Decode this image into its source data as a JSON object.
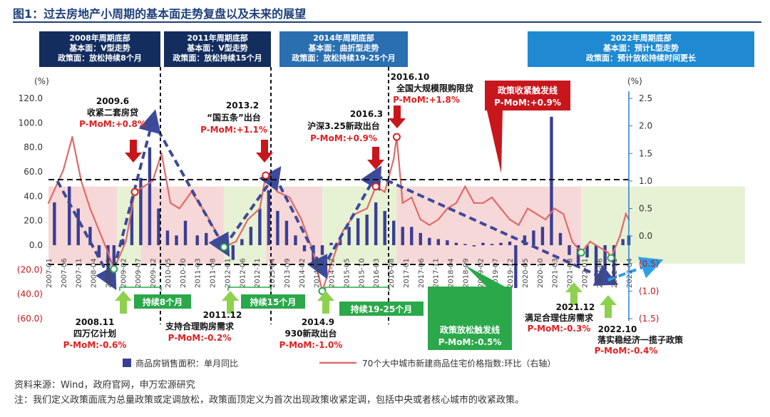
{
  "title": "图1：过去房地产小周期的基本面走势复盘以及未来的展望",
  "headers": [
    {
      "lines": [
        "2008年周期底部",
        "基本面：V型走势",
        "政策面：放松持续8个月"
      ]
    },
    {
      "lines": [
        "2011年周期底部",
        "基本面：V型走势",
        "政策面：放松持续15个月"
      ]
    },
    {
      "lines": [
        "2014年周期底部",
        "基本面：曲折型走势",
        "政策面：放松持续19-25个月"
      ]
    },
    {
      "lines": [
        "2022年周期底部",
        "基本面：预计L型走势",
        "政策面：预计放松持续时间更长"
      ]
    }
  ],
  "axes": {
    "left_unit": "(%)",
    "right_unit": "(%)",
    "left_ticks": [
      "120.0",
      "100.0",
      "80.0",
      "60.0",
      "40.0",
      "20.0",
      "0.0",
      "(20.0)",
      "(40.0)",
      "(60.0)"
    ],
    "right_ticks": [
      "2.5",
      "2.0",
      "1.5",
      "1.0",
      "0.5",
      "0.0",
      "(0.5)",
      "(1.0)",
      "(1.5)"
    ]
  },
  "annotations": {
    "a2009": {
      "date": "2009.6",
      "event": "收紧二套房贷",
      "mom": "P-MoM:+0.8%"
    },
    "a2013": {
      "date": "2013.2",
      "event": "“国五条”出台",
      "mom": "P-MoM:+1.1%"
    },
    "a2016_3": {
      "date": "2016.3",
      "event": "沪深3.25新政出台",
      "mom": "P-MoM:+0.9%"
    },
    "a2016_10": {
      "date": "2016.10",
      "event": "全国大规模限购限贷",
      "mom": "P-MoM:+1.8%"
    },
    "a2008": {
      "date": "2008.11",
      "event": "四万亿计划",
      "mom": "P-MoM:-0.6%"
    },
    "a2011": {
      "date": "2011.12",
      "event": "支持合理购房需求",
      "mom": "P-MoM:-0.2%"
    },
    "a2014": {
      "date": "2014.9",
      "event": "930新政出台",
      "mom": "P-MoM:-1.0%"
    },
    "a2021": {
      "date": "2021.12",
      "event": "满足合理住房需求",
      "mom": "P-MoM:-0.3%"
    },
    "a2022": {
      "date": "2022.10",
      "event": "落实稳经济一揽子政策",
      "mom": "P-MoM:-0.4%"
    },
    "tighten": {
      "line1": "政策收紧触发线",
      "line2": "P-MoM:+0.9%"
    },
    "loosen": {
      "line1": "政策放松触发线",
      "line2": "P-MoM:-0.5%"
    },
    "dur8": "持续8个月",
    "dur15": "持续15个月",
    "dur19": "持续19-25个月"
  },
  "legend": {
    "bar": "商品房销售面积：单月同比",
    "line": "70个大中城市新建商品住宅价格指数:环比（右轴）"
  },
  "footer": {
    "source": "资料来源：Wind，政府官网，申万宏源研究",
    "note": "注：我们定义政策面底为总量政策或定调放松，政策面顶定义为首次出现政策收紧定调，包括中央或者核心城市的收紧政策。"
  },
  "chart_data": {
    "type": "bar",
    "x_range": [
      "2007-01",
      "2023-04"
    ],
    "x_tick_labels": [
      "2007-01",
      "2007-06",
      "2007-11",
      "2008-04",
      "2008-09",
      "2009-02",
      "2009-07",
      "2009-12",
      "2010-05",
      "2010-10",
      "2011-03",
      "2011-08",
      "2012-01",
      "2012-06",
      "2012-11",
      "2013-04",
      "2013-09",
      "2014-02",
      "2014-07",
      "2014-12",
      "2015-05",
      "2015-10",
      "2016-03",
      "2016-08",
      "2017-01",
      "2017-06",
      "2017-11",
      "2018-04",
      "2018-09",
      "2019-02",
      "2019-07",
      "2019-12",
      "2020-05",
      "2020-10",
      "2021-03",
      "2021-08",
      "2022-01",
      "2022-06",
      "2022-11",
      "2023-04"
    ],
    "ylim_left": [
      -60,
      120
    ],
    "ylim_right": [
      -1.5,
      2.5
    ],
    "tighten_threshold": 0.9,
    "loosen_threshold": -0.5,
    "grid": false,
    "legend_position": "bottom",
    "series": [
      {
        "name": "商品房销售面积：单月同比",
        "kind": "bar",
        "axis": "left",
        "color": "#3a3f94",
        "points": [
          [
            "2007-03",
            35
          ],
          [
            "2007-08",
            48
          ],
          [
            "2007-11",
            30
          ],
          [
            "2008-03",
            15
          ],
          [
            "2008-06",
            -10
          ],
          [
            "2008-09",
            -25
          ],
          [
            "2008-11",
            -20
          ],
          [
            "2009-02",
            5
          ],
          [
            "2009-05",
            35
          ],
          [
            "2009-08",
            55
          ],
          [
            "2009-11",
            80
          ],
          [
            "2010-02",
            30
          ],
          [
            "2010-05",
            12
          ],
          [
            "2010-08",
            8
          ],
          [
            "2010-11",
            20
          ],
          [
            "2011-03",
            8
          ],
          [
            "2011-06",
            10
          ],
          [
            "2011-09",
            5
          ],
          [
            "2011-12",
            -5
          ],
          [
            "2012-03",
            -12
          ],
          [
            "2012-06",
            5
          ],
          [
            "2012-09",
            15
          ],
          [
            "2012-12",
            30
          ],
          [
            "2013-03",
            45
          ],
          [
            "2013-06",
            28
          ],
          [
            "2013-09",
            20
          ],
          [
            "2013-12",
            8
          ],
          [
            "2014-03",
            -5
          ],
          [
            "2014-06",
            -15
          ],
          [
            "2014-09",
            -8
          ],
          [
            "2014-12",
            2
          ],
          [
            "2015-03",
            5
          ],
          [
            "2015-06",
            15
          ],
          [
            "2015-09",
            22
          ],
          [
            "2015-12",
            25
          ],
          [
            "2016-03",
            35
          ],
          [
            "2016-06",
            28
          ],
          [
            "2016-09",
            20
          ],
          [
            "2016-12",
            15
          ],
          [
            "2017-03",
            15
          ],
          [
            "2017-06",
            10
          ],
          [
            "2017-09",
            6
          ],
          [
            "2017-12",
            5
          ],
          [
            "2018-03",
            4
          ],
          [
            "2018-06",
            2
          ],
          [
            "2018-09",
            1
          ],
          [
            "2018-12",
            -1
          ],
          [
            "2019-03",
            2
          ],
          [
            "2019-06",
            1
          ],
          [
            "2019-09",
            2
          ],
          [
            "2019-12",
            3
          ],
          [
            "2020-02",
            -35
          ],
          [
            "2020-05",
            8
          ],
          [
            "2020-08",
            12
          ],
          [
            "2020-11",
            15
          ],
          [
            "2021-02",
            105
          ],
          [
            "2021-05",
            10
          ],
          [
            "2021-08",
            -8
          ],
          [
            "2021-11",
            -15
          ],
          [
            "2022-02",
            -10
          ],
          [
            "2022-05",
            -32
          ],
          [
            "2022-08",
            -20
          ],
          [
            "2022-11",
            -30
          ],
          [
            "2023-02",
            5
          ],
          [
            "2023-04",
            8
          ]
        ]
      },
      {
        "name": "70个大中城市新建商品住宅价格指数:环比（右轴）",
        "kind": "line",
        "axis": "right",
        "color": "#e06a6a",
        "points": [
          [
            "2007-01",
            0.6
          ],
          [
            "2007-06",
            1.2
          ],
          [
            "2007-09",
            1.8
          ],
          [
            "2007-12",
            1.0
          ],
          [
            "2008-03",
            0.5
          ],
          [
            "2008-06",
            0.1
          ],
          [
            "2008-09",
            -0.3
          ],
          [
            "2008-11",
            -0.6
          ],
          [
            "2009-03",
            -0.1
          ],
          [
            "2009-06",
            0.8
          ],
          [
            "2009-09",
            0.9
          ],
          [
            "2009-12",
            1.0
          ],
          [
            "2010-03",
            1.5
          ],
          [
            "2010-06",
            0.6
          ],
          [
            "2010-09",
            0.5
          ],
          [
            "2011-01",
            0.8
          ],
          [
            "2011-06",
            0.4
          ],
          [
            "2011-09",
            0.1
          ],
          [
            "2011-12",
            -0.2
          ],
          [
            "2012-04",
            -0.1
          ],
          [
            "2012-08",
            0.3
          ],
          [
            "2012-12",
            0.5
          ],
          [
            "2013-02",
            1.1
          ],
          [
            "2013-06",
            0.8
          ],
          [
            "2013-10",
            0.7
          ],
          [
            "2014-02",
            0.3
          ],
          [
            "2014-06",
            -0.3
          ],
          [
            "2014-09",
            -1.0
          ],
          [
            "2014-12",
            -0.5
          ],
          [
            "2015-04",
            0.1
          ],
          [
            "2015-08",
            0.4
          ],
          [
            "2015-12",
            0.5
          ],
          [
            "2016-03",
            0.9
          ],
          [
            "2016-06",
            0.8
          ],
          [
            "2016-09",
            1.4
          ],
          [
            "2016-10",
            1.8
          ],
          [
            "2016-12",
            0.6
          ],
          [
            "2017-03",
            0.7
          ],
          [
            "2017-06",
            0.3
          ],
          [
            "2017-09",
            0.2
          ],
          [
            "2017-12",
            0.3
          ],
          [
            "2018-03",
            0.5
          ],
          [
            "2018-06",
            0.6
          ],
          [
            "2018-09",
            0.9
          ],
          [
            "2018-12",
            0.6
          ],
          [
            "2019-03",
            0.6
          ],
          [
            "2019-06",
            0.7
          ],
          [
            "2019-09",
            0.5
          ],
          [
            "2019-12",
            0.3
          ],
          [
            "2020-03",
            0.2
          ],
          [
            "2020-06",
            0.5
          ],
          [
            "2020-09",
            0.4
          ],
          [
            "2020-12",
            0.3
          ],
          [
            "2021-03",
            0.5
          ],
          [
            "2021-06",
            0.4
          ],
          [
            "2021-09",
            -0.1
          ],
          [
            "2021-12",
            -0.3
          ],
          [
            "2022-03",
            -0.1
          ],
          [
            "2022-06",
            -0.2
          ],
          [
            "2022-09",
            -0.3
          ],
          [
            "2022-10",
            -0.4
          ],
          [
            "2023-01",
            0.0
          ],
          [
            "2023-03",
            0.4
          ],
          [
            "2023-04",
            0.3
          ]
        ]
      }
    ],
    "trend_lines": [
      {
        "from": [
          "2007-04",
          1.0
        ],
        "to": [
          "2008-10",
          -0.8
        ]
      },
      {
        "from": [
          "2008-10",
          -0.8
        ],
        "to": [
          "2009-12",
          2.1
        ]
      },
      {
        "from": [
          "2009-12",
          2.1
        ],
        "to": [
          "2011-12",
          -0.2
        ]
      },
      {
        "from": [
          "2011-12",
          -0.2
        ],
        "to": [
          "2013-05",
          1.1
        ]
      },
      {
        "from": [
          "2013-05",
          1.1
        ],
        "to": [
          "2014-09",
          -0.6
        ]
      },
      {
        "from": [
          "2014-09",
          -0.6
        ],
        "to": [
          "2016-03",
          1.1
        ]
      },
      {
        "from": [
          "2016-03",
          1.1
        ],
        "to": [
          "2022-09",
          -0.8
        ]
      },
      {
        "from": [
          "2022-09",
          -0.8
        ],
        "to": [
          "2023-12",
          -0.5
        ],
        "projection": true
      }
    ],
    "shaded_periods": [
      {
        "from": "2007-01",
        "to": "2008-12",
        "type": "tighten"
      },
      {
        "from": "2008-12",
        "to": "2009-08",
        "type": "loosen"
      },
      {
        "from": "2009-08",
        "to": "2011-12",
        "type": "tighten"
      },
      {
        "from": "2011-12",
        "to": "2013-02",
        "type": "loosen"
      },
      {
        "from": "2013-02",
        "to": "2014-09",
        "type": "tighten"
      },
      {
        "from": "2014-09",
        "to": "2016-10",
        "type": "loosen"
      },
      {
        "from": "2016-10",
        "to": "2021-12",
        "type": "tighten"
      },
      {
        "from": "2021-12",
        "to": "2023-12",
        "type": "loosen"
      }
    ]
  }
}
